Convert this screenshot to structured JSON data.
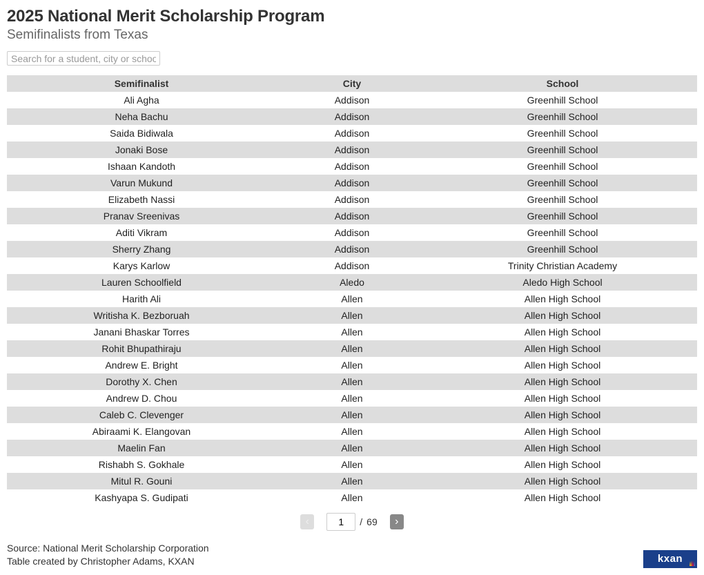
{
  "header": {
    "title": "2025 National Merit Scholarship Program",
    "subtitle": "Semifinalists from Texas"
  },
  "search": {
    "placeholder": "Search for a student, city or school..."
  },
  "table": {
    "columns": [
      "Semifinalist",
      "City",
      "School"
    ],
    "column_widths_pct": [
      39,
      22,
      39
    ],
    "header_bg": "#dddddd",
    "row_even_bg": "#dddddd",
    "row_odd_bg": "#ffffff",
    "font_size_pt": 11,
    "rows": [
      [
        "Ali Agha",
        "Addison",
        "Greenhill School"
      ],
      [
        "Neha Bachu",
        "Addison",
        "Greenhill School"
      ],
      [
        "Saida Bidiwala",
        "Addison",
        "Greenhill School"
      ],
      [
        "Jonaki Bose",
        "Addison",
        "Greenhill School"
      ],
      [
        "Ishaan Kandoth",
        "Addison",
        "Greenhill School"
      ],
      [
        "Varun Mukund",
        "Addison",
        "Greenhill School"
      ],
      [
        "Elizabeth Nassi",
        "Addison",
        "Greenhill School"
      ],
      [
        "Pranav Sreenivas",
        "Addison",
        "Greenhill School"
      ],
      [
        "Aditi Vikram",
        "Addison",
        "Greenhill School"
      ],
      [
        "Sherry Zhang",
        "Addison",
        "Greenhill School"
      ],
      [
        "Karys Karlow",
        "Addison",
        "Trinity Christian Academy"
      ],
      [
        "Lauren Schoolfield",
        "Aledo",
        "Aledo High School"
      ],
      [
        "Harith Ali",
        "Allen",
        "Allen High School"
      ],
      [
        "Writisha K. Bezboruah",
        "Allen",
        "Allen High School"
      ],
      [
        "Janani Bhaskar Torres",
        "Allen",
        "Allen High School"
      ],
      [
        "Rohit Bhupathiraju",
        "Allen",
        "Allen High School"
      ],
      [
        "Andrew E. Bright",
        "Allen",
        "Allen High School"
      ],
      [
        "Dorothy X. Chen",
        "Allen",
        "Allen High School"
      ],
      [
        "Andrew D. Chou",
        "Allen",
        "Allen High School"
      ],
      [
        "Caleb C. Clevenger",
        "Allen",
        "Allen High School"
      ],
      [
        "Abiraami K. Elangovan",
        "Allen",
        "Allen High School"
      ],
      [
        "Maelin Fan",
        "Allen",
        "Allen High School"
      ],
      [
        "Rishabh S. Gokhale",
        "Allen",
        "Allen High School"
      ],
      [
        "Mitul R. Gouni",
        "Allen",
        "Allen High School"
      ],
      [
        "Kashyapa S. Gudipati",
        "Allen",
        "Allen High School"
      ]
    ]
  },
  "pagination": {
    "prev_glyph": "‹",
    "next_glyph": "›",
    "current_page": "1",
    "total_pages": "69",
    "separator": "/"
  },
  "footer": {
    "source_line": "Source: National Merit Scholarship Corporation",
    "credit_line": "Table created by Christopher Adams, KXAN",
    "logo_text": "kxan",
    "logo_bg": "#1a3f8a",
    "logo_fg": "#ffffff"
  },
  "colors": {
    "title": "#333333",
    "subtitle": "#666666",
    "text": "#333333",
    "background": "#ffffff",
    "border": "#cccccc",
    "placeholder": "#999999",
    "pg_prev_bg": "#dddddd",
    "pg_prev_fg": "#eeeeee",
    "pg_next_bg": "#888888",
    "pg_next_fg": "#ffffff"
  }
}
